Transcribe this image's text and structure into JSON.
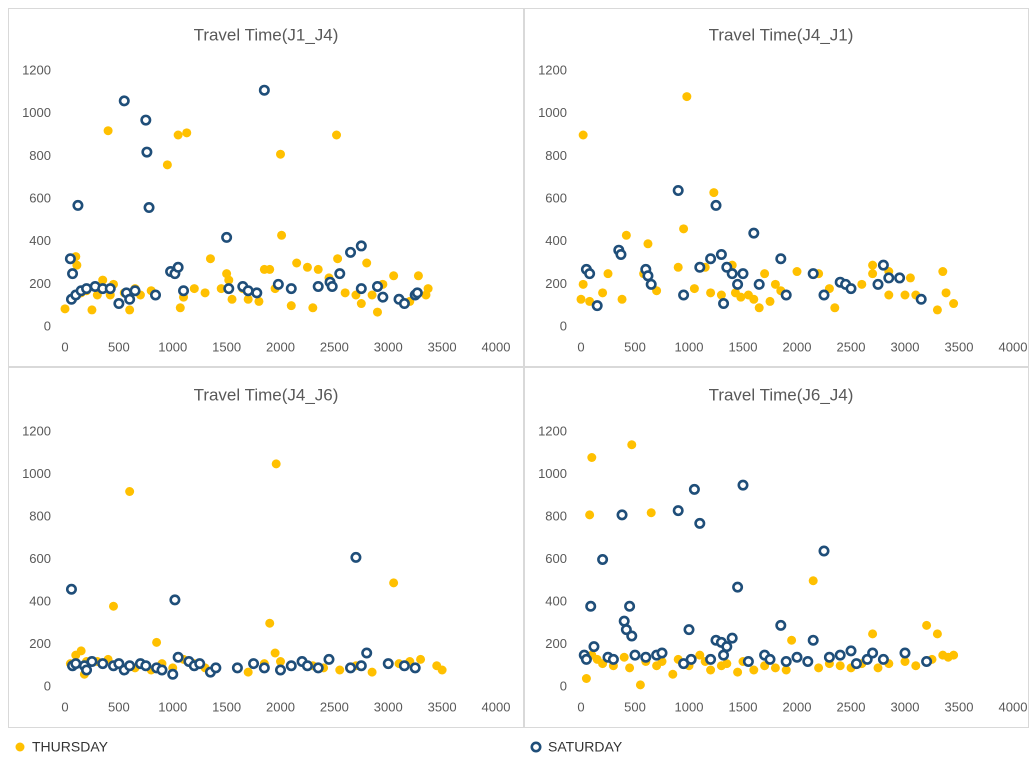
{
  "chart_data": [
    {
      "type": "scatter",
      "title": "Travel Time(J1_J4)",
      "xlim": [
        0,
        4000
      ],
      "ylim": [
        0,
        1200
      ],
      "xticks": [
        0,
        500,
        1000,
        1500,
        2000,
        2500,
        3000,
        3500,
        4000
      ],
      "yticks": [
        0,
        200,
        400,
        600,
        800,
        1000,
        1200
      ],
      "series": [
        {
          "name": "THURSDAY",
          "color": "#ffc000",
          "marker": "dot",
          "x": [
            0,
            100,
            110,
            150,
            200,
            250,
            300,
            350,
            400,
            420,
            450,
            500,
            550,
            600,
            650,
            700,
            800,
            950,
            1050,
            1070,
            1100,
            1130,
            1200,
            1300,
            1350,
            1450,
            1500,
            1520,
            1550,
            1650,
            1700,
            1800,
            1850,
            1900,
            1950,
            2000,
            2010,
            2100,
            2150,
            2250,
            2300,
            2350,
            2450,
            2520,
            2530,
            2600,
            2700,
            2750,
            2800,
            2850,
            2900,
            2950,
            3050,
            3100,
            3200,
            3280,
            3350,
            3370
          ],
          "values": [
            85,
            330,
            290,
            160,
            170,
            80,
            150,
            220,
            920,
            150,
            200,
            110,
            160,
            80,
            180,
            150,
            170,
            760,
            900,
            90,
            140,
            910,
            180,
            160,
            320,
            180,
            250,
            220,
            130,
            180,
            130,
            120,
            270,
            270,
            180,
            810,
            430,
            100,
            300,
            280,
            90,
            270,
            230,
            900,
            320,
            160,
            150,
            110,
            300,
            150,
            70,
            200,
            240,
            130,
            120,
            240,
            150,
            180
          ]
        },
        {
          "name": "SATURDAY",
          "color": "#1f4e79",
          "marker": "ring",
          "x": [
            50,
            60,
            70,
            100,
            120,
            150,
            200,
            280,
            350,
            420,
            500,
            550,
            570,
            600,
            650,
            750,
            760,
            780,
            840,
            980,
            1020,
            1050,
            1100,
            1500,
            1520,
            1650,
            1700,
            1780,
            1850,
            1980,
            2100,
            2350,
            2460,
            2480,
            2550,
            2650,
            2750,
            2750,
            2900,
            2950,
            3100,
            3150,
            3250,
            3270
          ],
          "values": [
            320,
            130,
            250,
            150,
            570,
            170,
            180,
            190,
            180,
            180,
            110,
            1060,
            160,
            130,
            170,
            970,
            820,
            560,
            150,
            260,
            250,
            280,
            170,
            420,
            180,
            190,
            170,
            160,
            1110,
            200,
            180,
            190,
            210,
            190,
            250,
            350,
            380,
            180,
            190,
            140,
            130,
            110,
            150,
            160
          ]
        }
      ]
    },
    {
      "type": "scatter",
      "title": "Travel Time(J4_J1)",
      "xlim": [
        0,
        4000
      ],
      "ylim": [
        0,
        1200
      ],
      "xticks": [
        0,
        500,
        1000,
        1500,
        2000,
        2500,
        3000,
        3500,
        4000
      ],
      "yticks": [
        0,
        200,
        400,
        600,
        800,
        1000,
        1200
      ],
      "series": [
        {
          "color": "#ffc000",
          "marker": "dot",
          "x": [
            20,
            0,
            20,
            80,
            200,
            250,
            380,
            420,
            580,
            620,
            700,
            900,
            950,
            980,
            1050,
            1150,
            1200,
            1230,
            1300,
            1400,
            1430,
            1480,
            1550,
            1600,
            1650,
            1700,
            1750,
            1800,
            1850,
            2000,
            2200,
            2300,
            2350,
            2600,
            2700,
            2700,
            2850,
            2850,
            3000,
            3050,
            3100,
            3300,
            3350,
            3380,
            3450
          ],
          "values": [
            900,
            130,
            200,
            120,
            160,
            250,
            130,
            430,
            250,
            390,
            170,
            280,
            460,
            1080,
            180,
            280,
            160,
            630,
            150,
            290,
            160,
            140,
            150,
            130,
            90,
            250,
            120,
            200,
            170,
            260,
            250,
            180,
            90,
            200,
            290,
            250,
            260,
            150,
            150,
            230,
            150,
            80,
            260,
            160,
            110
          ]
        },
        {
          "color": "#1f4e79",
          "marker": "ring",
          "x": [
            50,
            80,
            150,
            350,
            370,
            600,
            620,
            650,
            900,
            950,
            1100,
            1200,
            1250,
            1300,
            1320,
            1350,
            1400,
            1450,
            1500,
            1600,
            1650,
            1850,
            1900,
            2150,
            2250,
            2400,
            2450,
            2500,
            2750,
            2800,
            2850,
            2950,
            3150
          ],
          "values": [
            270,
            250,
            100,
            360,
            340,
            270,
            240,
            200,
            640,
            150,
            280,
            320,
            570,
            340,
            110,
            280,
            250,
            200,
            250,
            440,
            200,
            320,
            150,
            250,
            150,
            210,
            200,
            180,
            200,
            290,
            230,
            230,
            130
          ]
        }
      ]
    },
    {
      "type": "scatter",
      "title": "Travel Time(J4_J6)",
      "xlim": [
        0,
        4000
      ],
      "ylim": [
        0,
        1200
      ],
      "xticks": [
        0,
        500,
        1000,
        1500,
        2000,
        2500,
        3000,
        3500,
        4000
      ],
      "yticks": [
        0,
        200,
        400,
        600,
        800,
        1000,
        1200
      ],
      "series": [
        {
          "color": "#ffc000",
          "marker": "dot",
          "x": [
            50,
            100,
            150,
            180,
            200,
            300,
            400,
            450,
            500,
            600,
            650,
            800,
            850,
            900,
            1000,
            1100,
            1200,
            1300,
            1350,
            1400,
            1700,
            1850,
            1900,
            1950,
            1960,
            2000,
            2200,
            2300,
            2400,
            2550,
            2700,
            2750,
            2850,
            3000,
            3050,
            3100,
            3200,
            3300,
            3450,
            3500
          ],
          "values": [
            110,
            150,
            170,
            60,
            120,
            120,
            130,
            380,
            110,
            920,
            90,
            80,
            210,
            110,
            90,
            130,
            110,
            90,
            70,
            90,
            70,
            110,
            300,
            160,
            1050,
            120,
            120,
            100,
            90,
            80,
            100,
            100,
            70,
            110,
            490,
            110,
            120,
            130,
            100,
            80
          ]
        },
        {
          "color": "#1f4e79",
          "marker": "ring",
          "x": [
            60,
            70,
            100,
            180,
            200,
            250,
            350,
            450,
            500,
            550,
            600,
            700,
            750,
            850,
            900,
            1000,
            1020,
            1050,
            1150,
            1200,
            1250,
            1350,
            1400,
            1600,
            1750,
            1850,
            2000,
            2100,
            2200,
            2250,
            2350,
            2450,
            2650,
            2700,
            2750,
            2800,
            3000,
            3150,
            3250
          ],
          "values": [
            460,
            100,
            110,
            100,
            80,
            120,
            110,
            100,
            110,
            80,
            100,
            110,
            100,
            90,
            80,
            60,
            410,
            140,
            120,
            100,
            110,
            70,
            90,
            90,
            110,
            90,
            80,
            100,
            120,
            100,
            90,
            130,
            90,
            610,
            100,
            160,
            110,
            100,
            90
          ]
        }
      ]
    },
    {
      "type": "scatter",
      "title": "Travel Time(J6_J4)",
      "xlim": [
        0,
        4000
      ],
      "ylim": [
        0,
        1200
      ],
      "xticks": [
        0,
        500,
        1000,
        1500,
        2000,
        2500,
        3000,
        3500,
        4000
      ],
      "yticks": [
        0,
        200,
        400,
        600,
        800,
        1000,
        1200
      ],
      "series": [
        {
          "color": "#ffc000",
          "marker": "dot",
          "x": [
            50,
            80,
            100,
            100,
            150,
            200,
            300,
            400,
            450,
            470,
            550,
            600,
            650,
            700,
            750,
            850,
            900,
            1000,
            1100,
            1150,
            1200,
            1300,
            1350,
            1450,
            1500,
            1600,
            1700,
            1800,
            1900,
            1950,
            2000,
            2150,
            2200,
            2300,
            2400,
            2500,
            2600,
            2700,
            2750,
            2850,
            3000,
            3100,
            3200,
            3250,
            3300,
            3350,
            3400,
            3450
          ],
          "values": [
            40,
            810,
            1080,
            150,
            130,
            110,
            100,
            140,
            90,
            1140,
            10,
            120,
            820,
            100,
            120,
            60,
            130,
            100,
            150,
            120,
            80,
            100,
            110,
            70,
            120,
            80,
            100,
            90,
            80,
            220,
            140,
            500,
            90,
            110,
            100,
            90,
            110,
            250,
            90,
            110,
            120,
            100,
            290,
            130,
            250,
            150,
            140,
            150
          ]
        },
        {
          "color": "#1f4e79",
          "marker": "ring",
          "x": [
            30,
            50,
            90,
            120,
            200,
            250,
            300,
            380,
            400,
            420,
            450,
            470,
            500,
            600,
            700,
            750,
            900,
            950,
            1000,
            1020,
            1050,
            1100,
            1200,
            1250,
            1300,
            1320,
            1350,
            1400,
            1450,
            1500,
            1550,
            1700,
            1750,
            1850,
            1900,
            2000,
            2100,
            2150,
            2250,
            2300,
            2400,
            2500,
            2550,
            2650,
            2700,
            2800,
            3000,
            3200
          ],
          "values": [
            150,
            130,
            380,
            190,
            600,
            140,
            130,
            810,
            310,
            270,
            380,
            240,
            150,
            140,
            150,
            160,
            830,
            110,
            270,
            130,
            930,
            770,
            130,
            220,
            210,
            150,
            190,
            230,
            470,
            950,
            120,
            150,
            130,
            290,
            120,
            140,
            120,
            220,
            640,
            140,
            150,
            170,
            110,
            130,
            160,
            130,
            160,
            120
          ]
        }
      ]
    }
  ]
}
